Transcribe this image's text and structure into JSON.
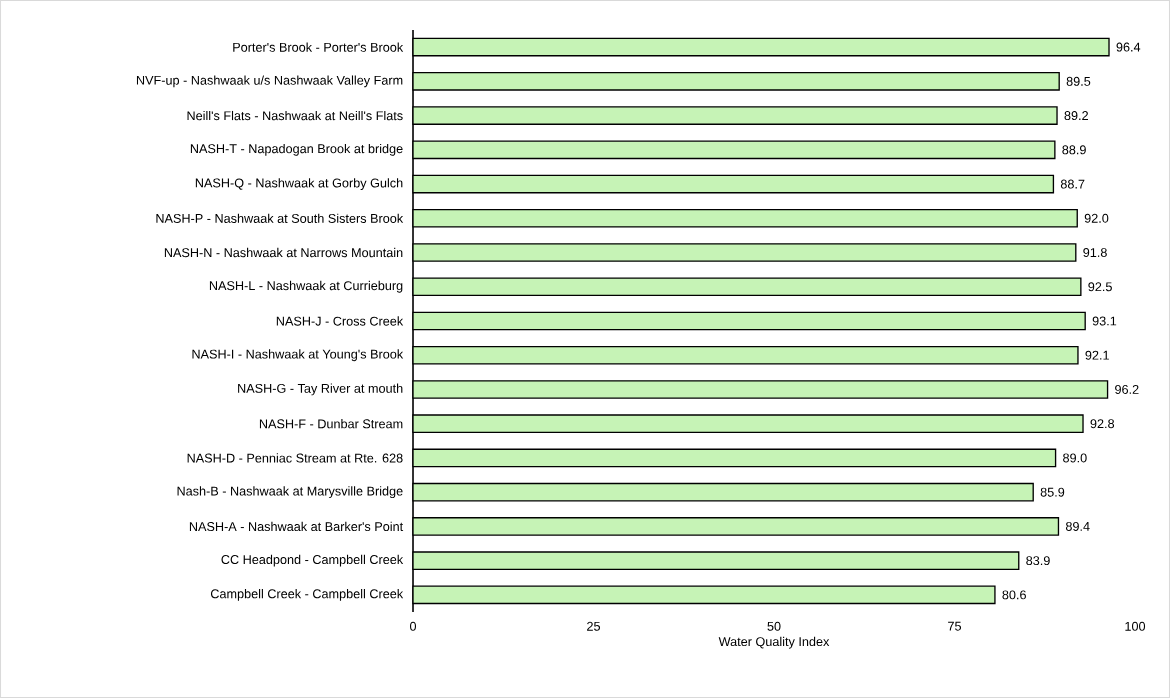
{
  "chart_data": {
    "type": "bar",
    "orientation": "horizontal",
    "xlabel": "Water Quality Index",
    "categories": [
      "Porter's Brook - Porter's Brook",
      "NVF-up - Nashwaak u/s Nashwaak Valley Farm",
      "Neill's Flats - Nashwaak at Neill's Flats",
      "NASH-T - Napadogan Brook at bridge",
      "NASH-Q - Nashwaak at Gorby Gulch",
      "NASH-P - Nashwaak at South Sisters Brook",
      "NASH-N - Nashwaak at Narrows Mountain",
      "NASH-L - Nashwaak at Currieburg",
      "NASH-J - Cross Creek",
      "NASH-I - Nashwaak at Young's Brook",
      "NASH-G - Tay River at mouth",
      "NASH-F - Dunbar Stream",
      "NASH-D - Penniac Stream at Rte. 628",
      "Nash-B - Nashwaak at Marysville Bridge",
      "NASH-A - Nashwaak at Barker's Point",
      "CC Headpond  - Campbell Creek",
      "Campbell Creek - Campbell Creek"
    ],
    "values": [
      96.4,
      89.5,
      89.2,
      88.9,
      88.7,
      92.0,
      91.8,
      92.5,
      93.1,
      92.1,
      96.2,
      92.8,
      89.0,
      85.9,
      89.4,
      83.9,
      80.6
    ],
    "value_labels": [
      "96.4",
      "89.5",
      "89.2",
      "88.9",
      "88.7",
      "92.0",
      "91.8",
      "92.5",
      "93.1",
      "92.1",
      "96.2",
      "92.8",
      "89.0",
      "85.9",
      "89.4",
      "83.9",
      "80.6"
    ],
    "color": "#c6f3b6",
    "xlim": [
      0,
      100
    ],
    "xticks": [
      0,
      25,
      50,
      75,
      100
    ]
  }
}
